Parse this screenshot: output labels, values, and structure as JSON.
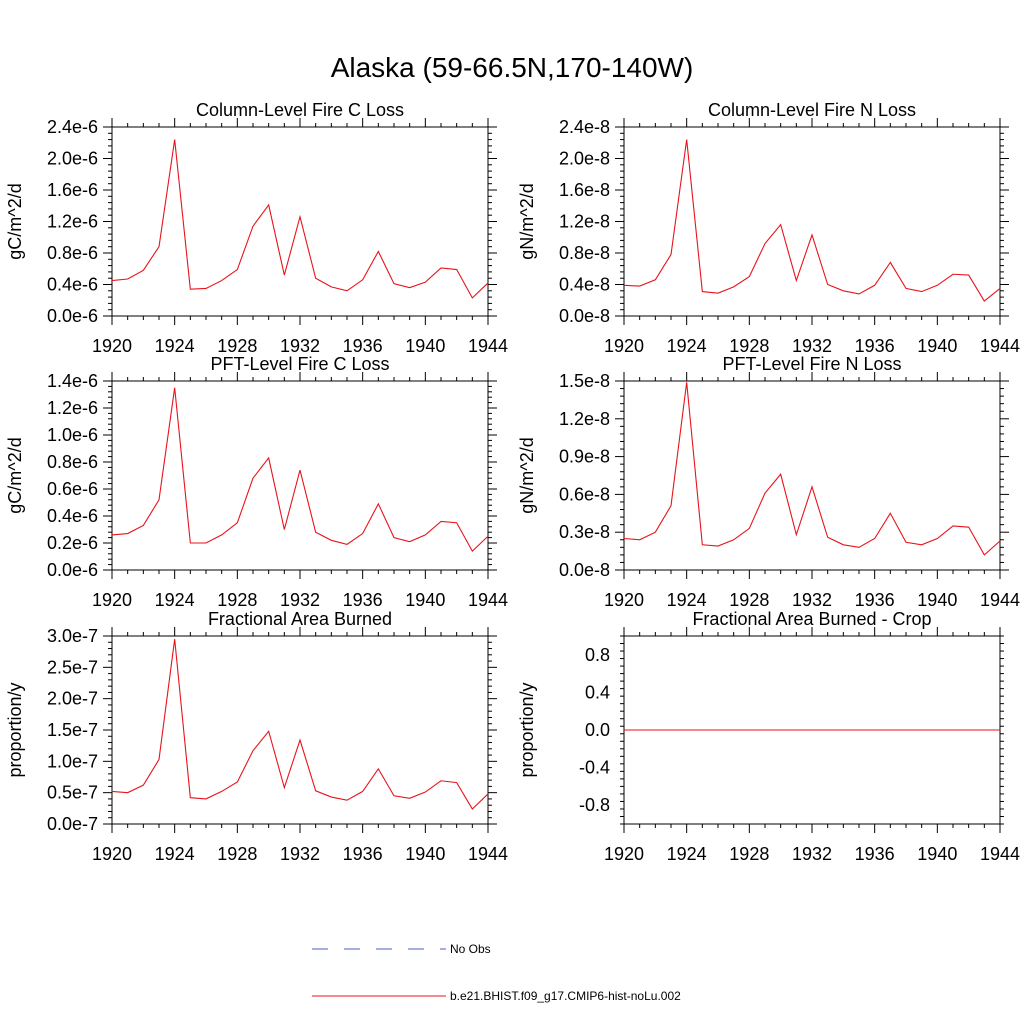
{
  "page_title": "Alaska (59-66.5N,170-140W)",
  "colors": {
    "series": "#e8131b",
    "no_obs": "#4a5ec4",
    "axis": "#000000"
  },
  "legend": [
    {
      "label": "No Obs",
      "style": "dashed",
      "color": "#4a5ec4"
    },
    {
      "label": "b.e21.BHIST.f09_g17.CMIP6-hist-noLu.002",
      "style": "solid",
      "color": "#e8131b"
    }
  ],
  "chart_data": [
    {
      "type": "line",
      "title": "Column-Level Fire C Loss",
      "ylabel": "gC/m^2/d",
      "xlim": [
        1920,
        1944
      ],
      "ylim": [
        0,
        2.4e-06
      ],
      "x_ticks": [
        1920,
        1924,
        1928,
        1932,
        1936,
        1940,
        1944
      ],
      "x_tick_labels": [
        "1920",
        "1924",
        "1928",
        "1932",
        "1936",
        "1940",
        "1944"
      ],
      "y_ticks": [
        0,
        4e-07,
        8e-07,
        1.2e-06,
        1.6e-06,
        2e-06,
        2.4e-06
      ],
      "y_tick_labels": [
        "0.0e-6",
        "0.4e-6",
        "0.8e-6",
        "1.2e-6",
        "1.6e-6",
        "2.0e-6",
        "2.4e-6"
      ],
      "x": [
        1920,
        1921,
        1922,
        1923,
        1924,
        1925,
        1926,
        1927,
        1928,
        1929,
        1930,
        1931,
        1932,
        1933,
        1934,
        1935,
        1936,
        1937,
        1938,
        1939,
        1940,
        1941,
        1942,
        1943,
        1944
      ],
      "series": [
        {
          "name": "b.e21.BHIST.f09_g17.CMIP6-hist-noLu.002",
          "values": [
            4.5e-07,
            4.7e-07,
            5.8e-07,
            8.8e-07,
            2.24e-06,
            3.4e-07,
            3.5e-07,
            4.5e-07,
            5.9e-07,
            1.14e-06,
            1.41e-06,
            5.2e-07,
            1.26e-06,
            4.8e-07,
            3.7e-07,
            3.2e-07,
            4.6e-07,
            8.2e-07,
            4.1e-07,
            3.6e-07,
            4.3e-07,
            6.1e-07,
            5.9e-07,
            2.3e-07,
            4.2e-07
          ]
        }
      ]
    },
    {
      "type": "line",
      "title": "Column-Level Fire N Loss",
      "ylabel": "gN/m^2/d",
      "xlim": [
        1920,
        1944
      ],
      "ylim": [
        0,
        2.4e-08
      ],
      "x_ticks": [
        1920,
        1924,
        1928,
        1932,
        1936,
        1940,
        1944
      ],
      "x_tick_labels": [
        "1920",
        "1924",
        "1928",
        "1932",
        "1936",
        "1940",
        "1944"
      ],
      "y_ticks": [
        0,
        4e-09,
        8e-09,
        1.2e-08,
        1.6e-08,
        2e-08,
        2.4e-08
      ],
      "y_tick_labels": [
        "0.0e-8",
        "0.4e-8",
        "0.8e-8",
        "1.2e-8",
        "1.6e-8",
        "2.0e-8",
        "2.4e-8"
      ],
      "x": [
        1920,
        1921,
        1922,
        1923,
        1924,
        1925,
        1926,
        1927,
        1928,
        1929,
        1930,
        1931,
        1932,
        1933,
        1934,
        1935,
        1936,
        1937,
        1938,
        1939,
        1940,
        1941,
        1942,
        1943,
        1944
      ],
      "series": [
        {
          "name": "b.e21.BHIST.f09_g17.CMIP6-hist-noLu.002",
          "values": [
            3.9e-09,
            3.8e-09,
            4.6e-09,
            7.8e-09,
            2.24e-08,
            3.1e-09,
            2.9e-09,
            3.7e-09,
            5e-09,
            9.2e-09,
            1.16e-08,
            4.5e-09,
            1.03e-08,
            4e-09,
            3.2e-09,
            2.8e-09,
            3.9e-09,
            6.8e-09,
            3.5e-09,
            3.1e-09,
            3.9e-09,
            5.3e-09,
            5.2e-09,
            1.9e-09,
            3.5e-09
          ]
        }
      ]
    },
    {
      "type": "line",
      "title": "PFT-Level Fire C Loss",
      "ylabel": "gC/m^2/d",
      "xlim": [
        1920,
        1944
      ],
      "ylim": [
        0,
        1.4e-06
      ],
      "x_ticks": [
        1920,
        1924,
        1928,
        1932,
        1936,
        1940,
        1944
      ],
      "x_tick_labels": [
        "1920",
        "1924",
        "1928",
        "1932",
        "1936",
        "1940",
        "1944"
      ],
      "y_ticks": [
        0,
        2e-07,
        4e-07,
        6e-07,
        8e-07,
        1e-06,
        1.2e-06,
        1.4e-06
      ],
      "y_tick_labels": [
        "0.0e-6",
        "0.2e-6",
        "0.4e-6",
        "0.6e-6",
        "0.8e-6",
        "1.0e-6",
        "1.2e-6",
        "1.4e-6"
      ],
      "x": [
        1920,
        1921,
        1922,
        1923,
        1924,
        1925,
        1926,
        1927,
        1928,
        1929,
        1930,
        1931,
        1932,
        1933,
        1934,
        1935,
        1936,
        1937,
        1938,
        1939,
        1940,
        1941,
        1942,
        1943,
        1944
      ],
      "series": [
        {
          "name": "b.e21.BHIST.f09_g17.CMIP6-hist-noLu.002",
          "values": [
            2.6e-07,
            2.7e-07,
            3.3e-07,
            5.2e-07,
            1.35e-06,
            2e-07,
            2e-07,
            2.6e-07,
            3.5e-07,
            6.8e-07,
            8.3e-07,
            3e-07,
            7.4e-07,
            2.8e-07,
            2.2e-07,
            1.9e-07,
            2.7e-07,
            4.9e-07,
            2.4e-07,
            2.1e-07,
            2.6e-07,
            3.6e-07,
            3.5e-07,
            1.4e-07,
            2.5e-07
          ]
        }
      ]
    },
    {
      "type": "line",
      "title": "PFT-Level Fire N Loss",
      "ylabel": "gN/m^2/d",
      "xlim": [
        1920,
        1944
      ],
      "ylim": [
        0,
        1.5e-08
      ],
      "x_ticks": [
        1920,
        1924,
        1928,
        1932,
        1936,
        1940,
        1944
      ],
      "x_tick_labels": [
        "1920",
        "1924",
        "1928",
        "1932",
        "1936",
        "1940",
        "1944"
      ],
      "y_ticks": [
        0,
        3e-09,
        6e-09,
        9e-09,
        1.2e-08,
        1.5e-08
      ],
      "y_tick_labels": [
        "0.0e-8",
        "0.3e-8",
        "0.6e-8",
        "0.9e-8",
        "1.2e-8",
        "1.5e-8"
      ],
      "x": [
        1920,
        1921,
        1922,
        1923,
        1924,
        1925,
        1926,
        1927,
        1928,
        1929,
        1930,
        1931,
        1932,
        1933,
        1934,
        1935,
        1936,
        1937,
        1938,
        1939,
        1940,
        1941,
        1942,
        1943,
        1944
      ],
      "series": [
        {
          "name": "b.e21.BHIST.f09_g17.CMIP6-hist-noLu.002",
          "values": [
            2.5e-09,
            2.4e-09,
            3e-09,
            5.1e-09,
            1.49e-08,
            2e-09,
            1.9e-09,
            2.4e-09,
            3.3e-09,
            6.1e-09,
            7.6e-09,
            2.8e-09,
            6.6e-09,
            2.6e-09,
            2e-09,
            1.8e-09,
            2.5e-09,
            4.5e-09,
            2.2e-09,
            2e-09,
            2.5e-09,
            3.5e-09,
            3.4e-09,
            1.2e-09,
            2.3e-09
          ]
        }
      ]
    },
    {
      "type": "line",
      "title": "Fractional Area Burned",
      "ylabel": "proportion/y",
      "xlim": [
        1920,
        1944
      ],
      "ylim": [
        0,
        3e-07
      ],
      "x_ticks": [
        1920,
        1924,
        1928,
        1932,
        1936,
        1940,
        1944
      ],
      "x_tick_labels": [
        "1920",
        "1924",
        "1928",
        "1932",
        "1936",
        "1940",
        "1944"
      ],
      "y_ticks": [
        0,
        5e-08,
        1e-07,
        1.5e-07,
        2e-07,
        2.5e-07,
        3e-07
      ],
      "y_tick_labels": [
        "0.0e-7",
        "0.5e-7",
        "1.0e-7",
        "1.5e-7",
        "2.0e-7",
        "2.5e-7",
        "3.0e-7"
      ],
      "x": [
        1920,
        1921,
        1922,
        1923,
        1924,
        1925,
        1926,
        1927,
        1928,
        1929,
        1930,
        1931,
        1932,
        1933,
        1934,
        1935,
        1936,
        1937,
        1938,
        1939,
        1940,
        1941,
        1942,
        1943,
        1944
      ],
      "series": [
        {
          "name": "b.e21.BHIST.f09_g17.CMIP6-hist-noLu.002",
          "values": [
            5.2e-08,
            5e-08,
            6.2e-08,
            1.03e-07,
            2.95e-07,
            4.2e-08,
            4e-08,
            5.2e-08,
            6.7e-08,
            1.17e-07,
            1.48e-07,
            5.8e-08,
            1.34e-07,
            5.3e-08,
            4.3e-08,
            3.8e-08,
            5.2e-08,
            8.8e-08,
            4.5e-08,
            4.1e-08,
            5.1e-08,
            6.9e-08,
            6.6e-08,
            2.4e-08,
            4.8e-08
          ]
        }
      ]
    },
    {
      "type": "line",
      "title": "Fractional Area Burned - Crop",
      "ylabel": "proportion/y",
      "xlim": [
        1920,
        1944
      ],
      "ylim": [
        -1.0,
        1.0
      ],
      "x_ticks": [
        1920,
        1924,
        1928,
        1932,
        1936,
        1940,
        1944
      ],
      "x_tick_labels": [
        "1920",
        "1924",
        "1928",
        "1932",
        "1936",
        "1940",
        "1944"
      ],
      "y_ticks": [
        -0.8,
        -0.4,
        0,
        0.4,
        0.8
      ],
      "y_tick_labels": [
        "-0.8",
        "-0.4",
        "0.0",
        "0.4",
        "0.8"
      ],
      "x": [
        1920,
        1921,
        1922,
        1923,
        1924,
        1925,
        1926,
        1927,
        1928,
        1929,
        1930,
        1931,
        1932,
        1933,
        1934,
        1935,
        1936,
        1937,
        1938,
        1939,
        1940,
        1941,
        1942,
        1943,
        1944
      ],
      "series": [
        {
          "name": "b.e21.BHIST.f09_g17.CMIP6-hist-noLu.002",
          "values": [
            0,
            0,
            0,
            0,
            0,
            0,
            0,
            0,
            0,
            0,
            0,
            0,
            0,
            0,
            0,
            0,
            0,
            0,
            0,
            0,
            0,
            0,
            0,
            0,
            0
          ]
        }
      ]
    }
  ]
}
